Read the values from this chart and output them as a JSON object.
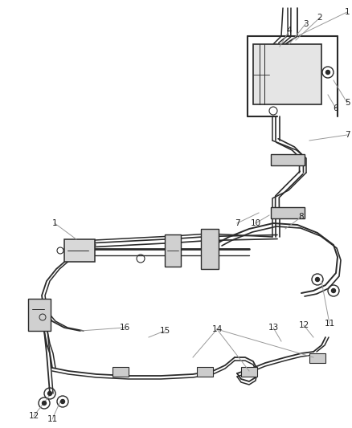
{
  "bg_color": "#ffffff",
  "line_color": "#2a2a2a",
  "label_color": "#222222",
  "callout_color": "#999999",
  "fig_width": 4.38,
  "fig_height": 5.33,
  "dpi": 100
}
